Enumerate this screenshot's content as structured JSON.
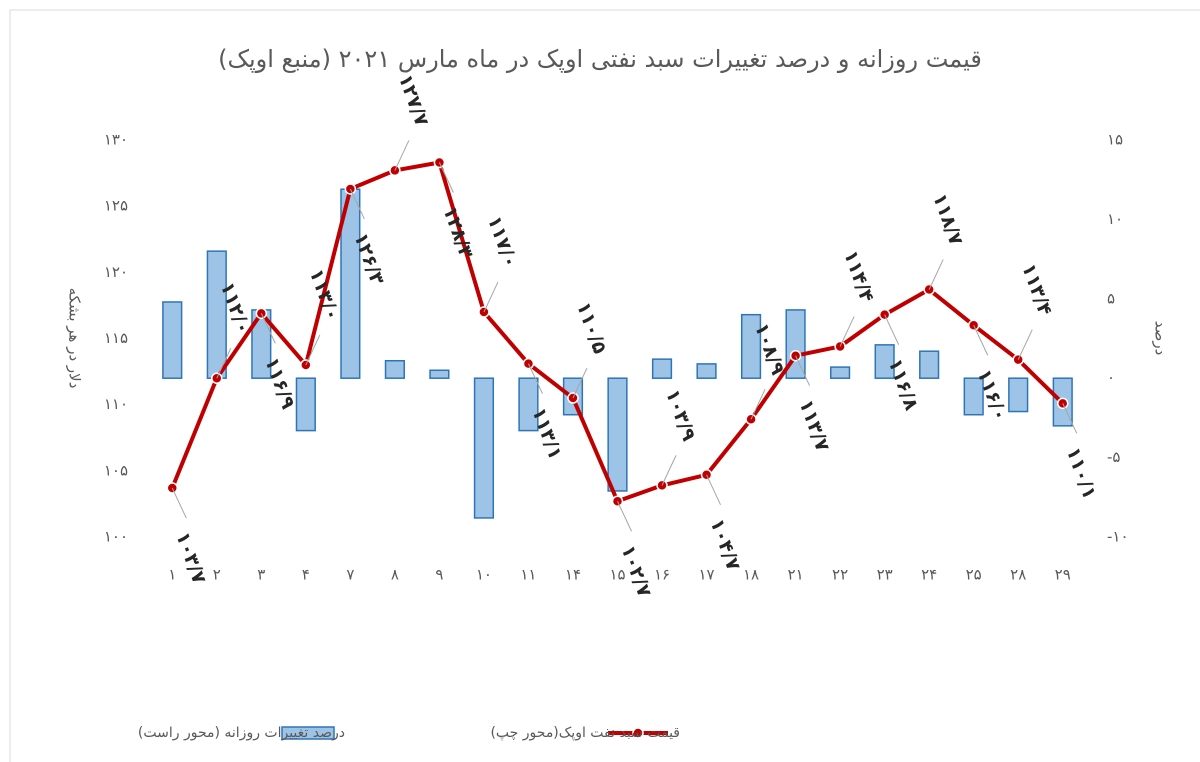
{
  "chart_data": {
    "type": "combo",
    "title": "قیمت روزانه و درصد تغییرات سبد نفتی اوپک در ماه مارس ۲۰۲۱ (منبع اوپک)",
    "y_label": "دلار در هر بشکه",
    "y2_label": "درصد",
    "categories": [
      "۱",
      "۲",
      "۳",
      "۴",
      "۷",
      "۸",
      "۹",
      "۱۰",
      "۱۱",
      "۱۴",
      "۱۵",
      "۱۶",
      "۱۷",
      "۱۸",
      "۲۱",
      "۲۲",
      "۲۳",
      "۲۴",
      "۲۵",
      "۲۸",
      "۲۹"
    ],
    "ylim": [
      100,
      130
    ],
    "yticks": [
      {
        "value": 100,
        "label": "۱۰۰"
      },
      {
        "value": 105,
        "label": "۱۰۵"
      },
      {
        "value": 110,
        "label": "۱۱۰"
      },
      {
        "value": 115,
        "label": "۱۱۵"
      },
      {
        "value": 120,
        "label": "۱۲۰"
      },
      {
        "value": 125,
        "label": "۱۲۵"
      },
      {
        "value": 130,
        "label": "۱۳۰"
      }
    ],
    "y2lim": [
      -10,
      15
    ],
    "y2ticks": [
      {
        "value": -10,
        "label": "-۱۰"
      },
      {
        "value": -5,
        "label": "-۵"
      },
      {
        "value": 0,
        "label": "۰"
      },
      {
        "value": 5,
        "label": "۵"
      },
      {
        "value": 10,
        "label": "۱۰"
      },
      {
        "value": 15,
        "label": "۱۵"
      }
    ],
    "series": [
      {
        "name": "درصد تغییرات روزانه (محور راست)",
        "type": "bar",
        "axis": "y2",
        "color": "#9dc3e6",
        "values": [
          4.8,
          8.0,
          4.3,
          -3.3,
          11.9,
          1.1,
          0.5,
          -8.8,
          -3.3,
          -2.3,
          -7.1,
          1.2,
          0.9,
          4.0,
          4.3,
          0.7,
          2.1,
          1.7,
          -2.3,
          -2.1,
          -3.0
        ]
      },
      {
        "name": "قیمت سبد نفت اوپک(محور چپ)",
        "type": "line",
        "color": "#c00000",
        "values": [
          103.7,
          112.0,
          116.9,
          113.0,
          126.3,
          127.7,
          128.3,
          117.0,
          113.1,
          110.5,
          102.7,
          103.9,
          104.7,
          108.9,
          113.7,
          114.4,
          116.8,
          118.7,
          116.0,
          113.4,
          110.1
        ],
        "value_labels": [
          "۱۰۳/۷",
          "۱۱۲/۰",
          "۱۱۶/۹",
          "۱۱۳/۰",
          "۱۲۶/۳",
          "۱۲۷/۷",
          "۱۲۸/۳",
          "۱۱۷/۰",
          "۱۱۳/۱",
          "۱۱۰/۵",
          "۱۰۲/۷",
          "۱۰۳/۹",
          "۱۰۴/۷",
          "۱۰۸/۹",
          "۱۱۳/۷",
          "۱۱۴/۴",
          "۱۱۶/۸",
          "۱۱۸/۷",
          "۱۱۶/۰",
          "۱۱۳/۴",
          "۱۱۰/۱"
        ]
      }
    ]
  }
}
